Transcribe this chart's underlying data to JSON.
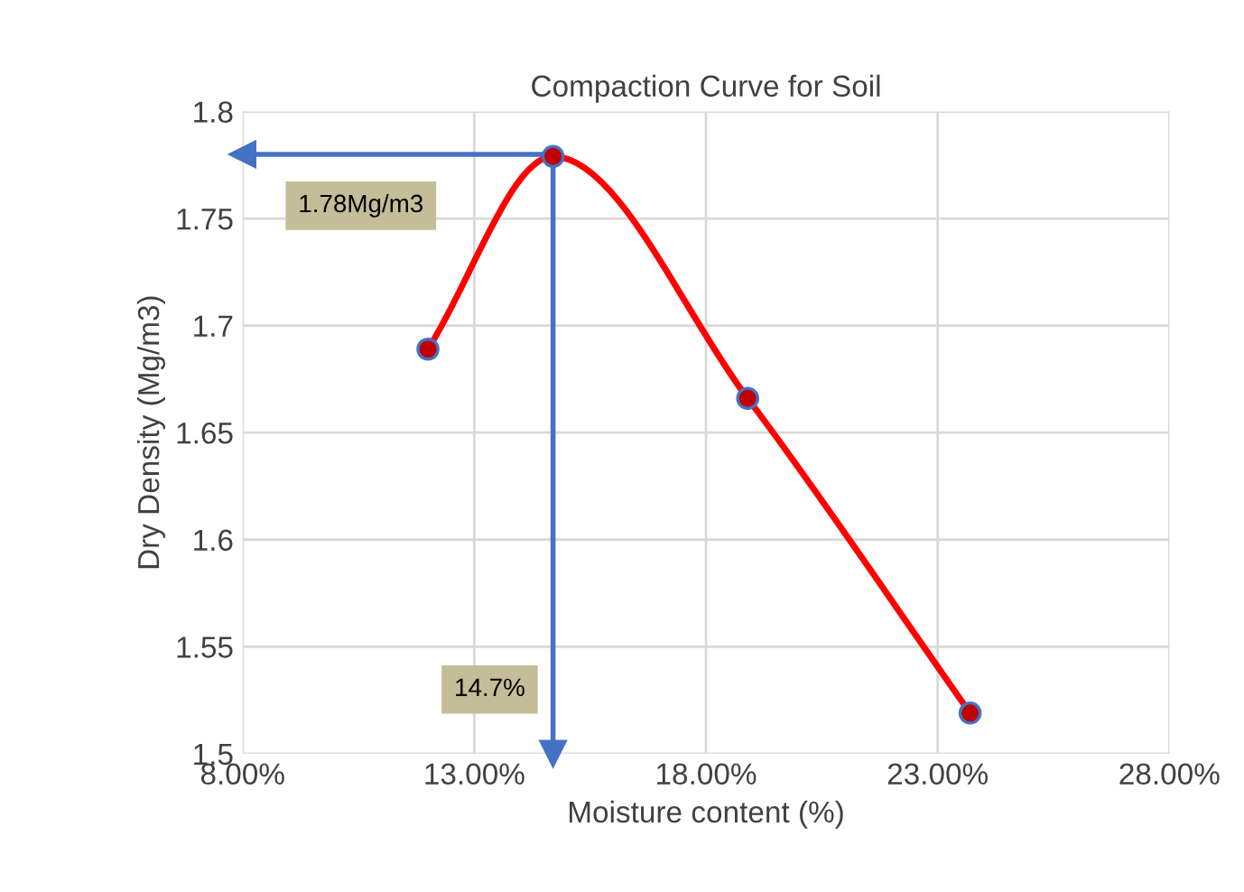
{
  "chart_data": {
    "type": "line",
    "title": "Compaction Curve for Soil",
    "xlabel": "Moisture content (%)",
    "ylabel": "Dry Density (Mg/m3)",
    "x": [
      12.0,
      14.7,
      18.9,
      23.7
    ],
    "series": [
      {
        "color": "#ff0000",
        "values": [
          1.689,
          1.779,
          1.666,
          1.519
        ]
      }
    ],
    "marker": "circle",
    "xlim": [
      8,
      28
    ],
    "xticks": [
      {
        "value": 8,
        "label": "8.00%"
      },
      {
        "value": 13,
        "label": "13.00%"
      },
      {
        "value": 18,
        "label": "18.00%"
      },
      {
        "value": 23,
        "label": "23.00%"
      },
      {
        "value": 28,
        "label": "28.00%"
      }
    ],
    "ylim": [
      1.5,
      1.8
    ],
    "yticks": [
      {
        "value": 1.5,
        "label": "1.5"
      },
      {
        "value": 1.55,
        "label": "1.55"
      },
      {
        "value": 1.6,
        "label": "1.6"
      },
      {
        "value": 1.65,
        "label": "1.65"
      },
      {
        "value": 1.7,
        "label": "1.7"
      },
      {
        "value": 1.75,
        "label": "1.75"
      },
      {
        "value": 1.8,
        "label": "1.8"
      }
    ],
    "grid": true,
    "ref_lines": [
      {
        "axis": "y",
        "value": 1.78,
        "label": "1.78Mg/m3",
        "color": "#4472c4"
      },
      {
        "axis": "x",
        "value": 14.7,
        "label": "14.7%",
        "color": "#4472c4"
      }
    ]
  }
}
